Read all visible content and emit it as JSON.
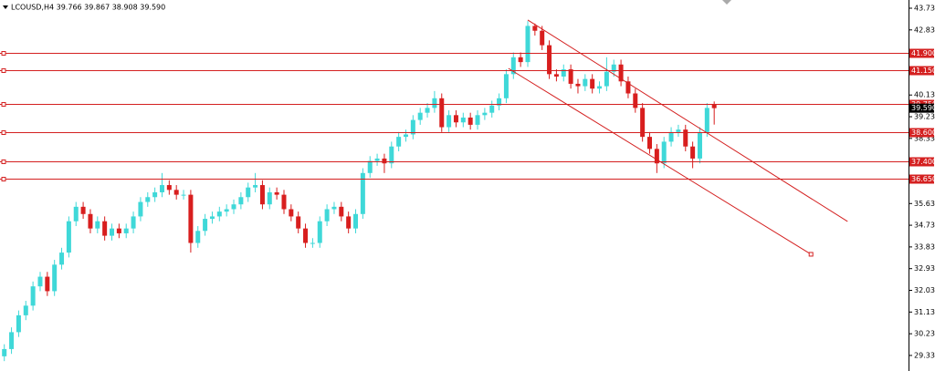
{
  "chart_data": {
    "type": "candlestick",
    "title": "LCOUSD,H4  39.766 39.867 38.908 39.590",
    "up_color": "#3fd8d8",
    "down_color": "#d81e1e",
    "level_color": "#d42020",
    "ylim": [
      28.69,
      44.075
    ],
    "xlim": [
      -0.6,
      126.1
    ],
    "yticks": [
      43.735,
      42.835,
      40.135,
      39.235,
      38.335,
      35.635,
      34.735,
      33.835,
      32.935,
      32.035,
      31.135,
      30.235,
      29.335
    ],
    "levels": [
      {
        "value": 41.9,
        "label": "41.900"
      },
      {
        "value": 41.15,
        "label": "41.150"
      },
      {
        "value": 39.75,
        "label": "39.750"
      },
      {
        "value": 38.6,
        "label": "38.600"
      },
      {
        "value": 37.4,
        "label": "37.400"
      },
      {
        "value": 36.65,
        "label": "36.650"
      }
    ],
    "current_price": {
      "value": 39.59,
      "label": "39.590"
    },
    "trendlines": [
      {
        "x": [
          73,
          117.6
        ],
        "y": [
          43.244,
          34.89
        ]
      },
      {
        "x": [
          70.3,
          112.5
        ],
        "y": [
          41.24,
          33.53
        ]
      }
    ],
    "open": [
      29.3,
      29.6,
      30.3,
      31.0,
      31.4,
      32.2,
      32.6,
      32.0,
      33.1,
      33.6,
      34.9,
      35.5,
      35.2,
      34.6,
      34.9,
      34.3,
      34.6,
      34.4,
      34.6,
      35.1,
      35.7,
      35.9,
      36.1,
      36.4,
      36.2,
      36.0,
      36.0,
      34.0,
      34.5,
      35.0,
      35.1,
      35.3,
      35.4,
      35.6,
      35.9,
      36.3,
      36.4,
      35.6,
      36.1,
      36.0,
      35.4,
      35.1,
      34.6,
      34.0,
      34.0,
      34.9,
      35.4,
      35.5,
      35.1,
      34.6,
      35.2,
      36.9,
      37.4,
      37.5,
      37.3,
      38.0,
      38.4,
      38.5,
      39.1,
      39.4,
      39.6,
      40.0,
      38.8,
      39.3,
      39.0,
      39.2,
      38.9,
      39.3,
      39.4,
      39.7,
      40.0,
      41.0,
      41.7,
      41.5,
      43.0,
      42.8,
      42.2,
      41.0,
      40.9,
      41.2,
      40.6,
      40.5,
      40.8,
      40.4,
      40.5,
      41.1,
      41.4,
      40.7,
      40.2,
      39.6,
      38.4,
      37.9,
      37.3,
      38.2,
      38.6,
      38.7,
      38.0,
      37.5,
      38.6,
      39.766
    ],
    "high": [
      29.8,
      30.5,
      31.2,
      31.6,
      32.4,
      32.8,
      32.8,
      33.3,
      33.8,
      35.1,
      35.7,
      35.7,
      35.4,
      35.1,
      35.1,
      34.8,
      34.8,
      34.8,
      35.3,
      35.9,
      36.1,
      36.3,
      36.9,
      36.6,
      36.4,
      36.2,
      36.2,
      34.7,
      35.2,
      35.3,
      35.5,
      35.6,
      35.8,
      36.1,
      36.5,
      36.9,
      36.6,
      36.3,
      36.3,
      36.2,
      35.6,
      35.3,
      34.8,
      34.2,
      35.1,
      35.6,
      35.7,
      35.7,
      35.3,
      35.4,
      37.1,
      37.6,
      37.7,
      37.7,
      38.2,
      38.6,
      38.7,
      39.3,
      39.6,
      39.8,
      40.3,
      40.2,
      39.5,
      39.5,
      39.4,
      39.4,
      39.5,
      39.6,
      39.9,
      40.2,
      41.2,
      41.9,
      41.9,
      43.2,
      43.1,
      43.0,
      42.4,
      41.2,
      41.4,
      41.4,
      40.8,
      41.0,
      41.0,
      40.7,
      41.7,
      41.6,
      41.6,
      40.9,
      40.4,
      39.8,
      38.6,
      38.1,
      38.4,
      38.8,
      38.9,
      38.9,
      38.2,
      38.8,
      39.8,
      39.867
    ],
    "low": [
      29.1,
      29.4,
      30.1,
      30.8,
      31.2,
      32.0,
      31.8,
      31.8,
      32.9,
      33.4,
      34.7,
      35.0,
      34.4,
      34.4,
      34.1,
      34.1,
      34.2,
      34.2,
      34.4,
      34.9,
      35.5,
      35.7,
      35.9,
      36.0,
      35.8,
      35.8,
      33.6,
      33.8,
      34.3,
      34.8,
      34.9,
      35.1,
      35.2,
      35.4,
      35.7,
      36.1,
      35.4,
      35.4,
      35.8,
      35.2,
      34.9,
      34.4,
      33.8,
      33.8,
      33.8,
      34.7,
      35.2,
      34.9,
      34.4,
      34.4,
      35.0,
      36.7,
      37.2,
      36.9,
      37.1,
      37.8,
      38.2,
      38.3,
      38.9,
      39.2,
      39.4,
      38.6,
      38.6,
      38.8,
      38.8,
      38.7,
      38.7,
      39.1,
      39.2,
      39.5,
      39.8,
      40.8,
      41.3,
      41.3,
      42.6,
      42.0,
      40.8,
      40.7,
      40.7,
      40.4,
      40.2,
      40.3,
      40.2,
      40.2,
      40.3,
      40.9,
      40.5,
      40.0,
      39.4,
      38.2,
      37.7,
      36.9,
      37.1,
      38.0,
      38.4,
      37.8,
      37.1,
      37.3,
      38.4,
      38.908
    ],
    "close": [
      29.6,
      30.3,
      31.0,
      31.4,
      32.2,
      32.6,
      32.0,
      33.1,
      33.6,
      34.9,
      35.5,
      35.2,
      34.6,
      34.9,
      34.3,
      34.6,
      34.4,
      34.6,
      35.1,
      35.7,
      35.9,
      36.1,
      36.4,
      36.2,
      36.0,
      36.0,
      34.0,
      34.5,
      35.0,
      35.1,
      35.3,
      35.4,
      35.6,
      35.9,
      36.3,
      36.4,
      35.6,
      36.1,
      36.0,
      35.4,
      35.1,
      34.6,
      34.0,
      34.0,
      34.9,
      35.4,
      35.5,
      35.1,
      34.6,
      35.2,
      36.9,
      37.4,
      37.5,
      37.3,
      38.0,
      38.4,
      38.5,
      39.1,
      39.4,
      39.6,
      40.0,
      38.8,
      39.3,
      39.0,
      39.2,
      38.9,
      39.3,
      39.4,
      39.7,
      40.0,
      41.0,
      41.7,
      41.5,
      43.0,
      42.8,
      42.2,
      41.0,
      40.9,
      41.2,
      40.6,
      40.5,
      40.8,
      40.4,
      40.5,
      41.1,
      41.4,
      40.7,
      40.2,
      39.6,
      38.4,
      37.9,
      37.3,
      38.2,
      38.6,
      38.7,
      38.0,
      37.5,
      38.6,
      39.6,
      39.59
    ]
  }
}
